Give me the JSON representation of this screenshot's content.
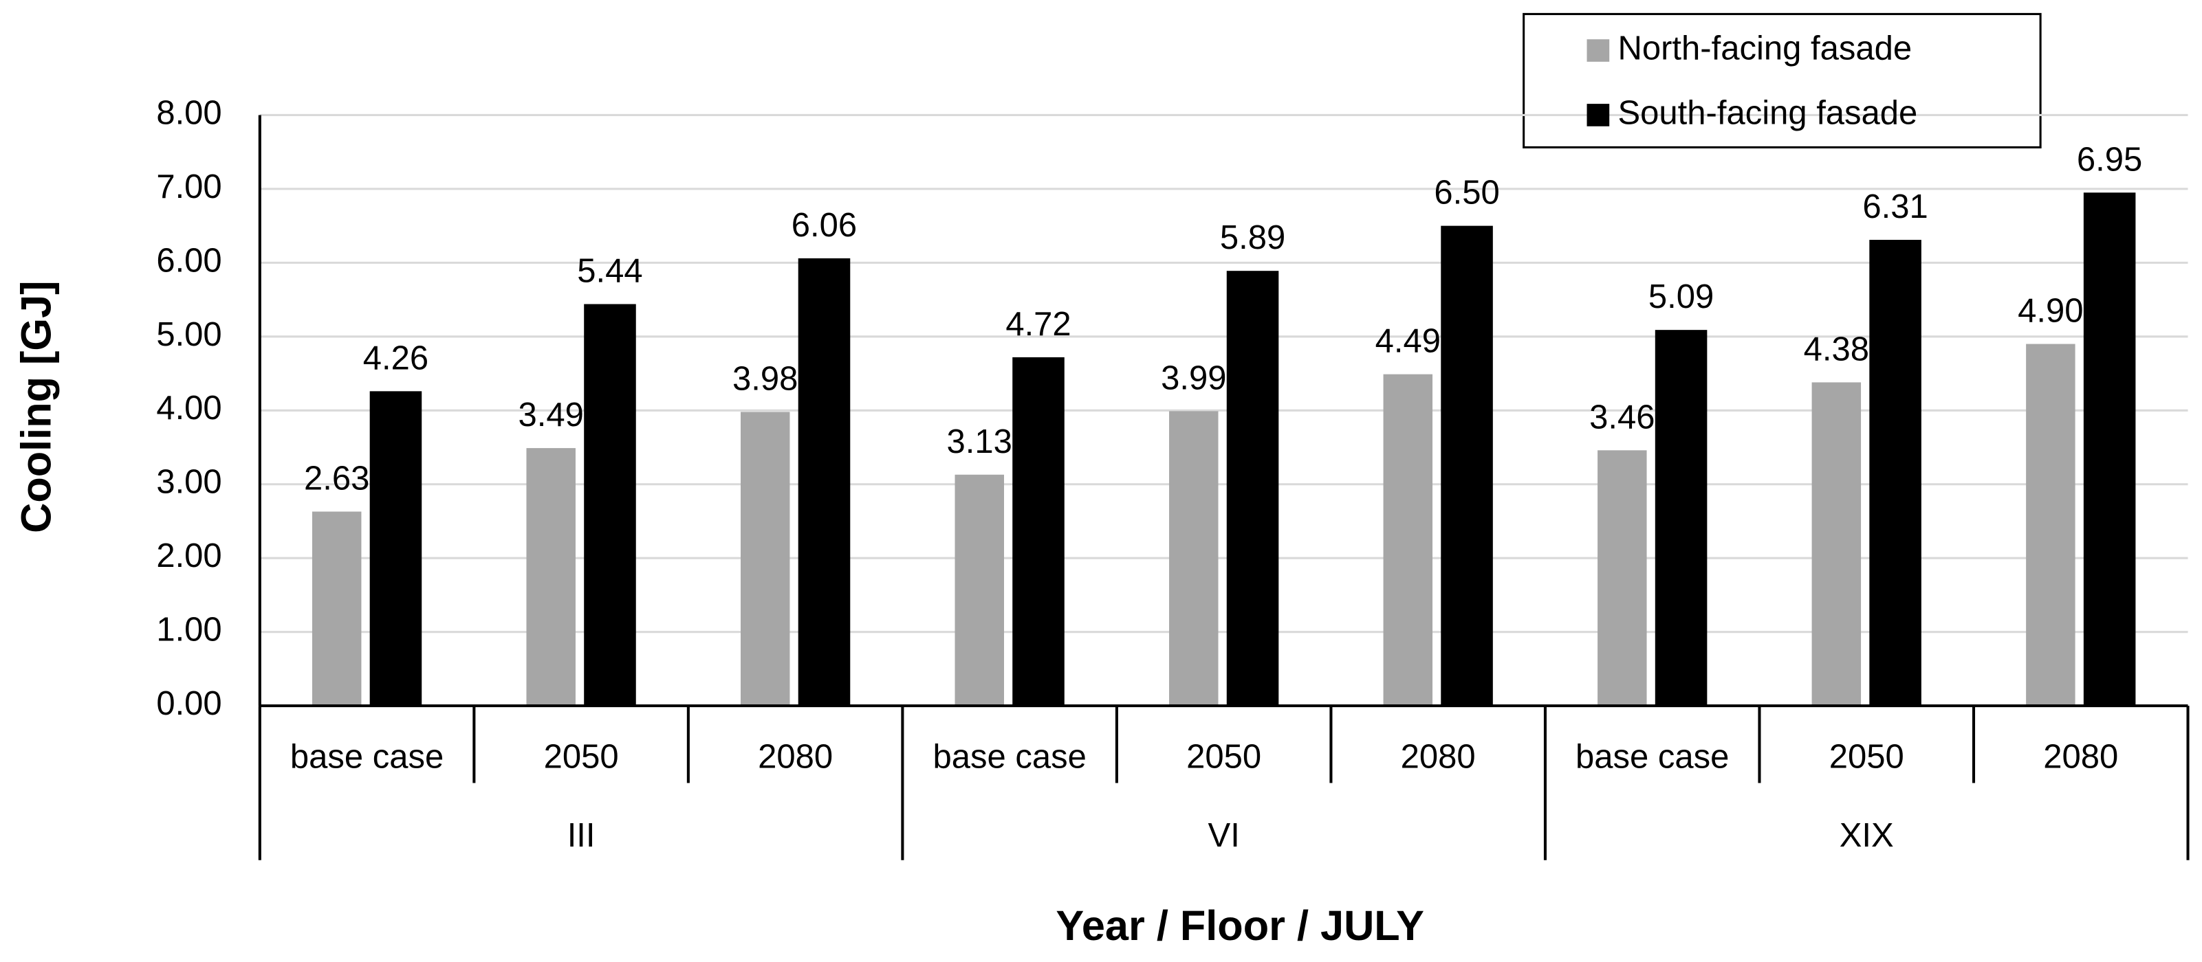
{
  "chart_data": {
    "type": "bar",
    "y_label": "Cooling  [GJ]",
    "x_label": "Year / Floor / JULY",
    "categories": [
      "base case",
      "2050",
      "2080",
      "base case",
      "2050",
      "2080",
      "base case",
      "2050",
      "2080"
    ],
    "groups": [
      "III",
      "VI",
      "XIX"
    ],
    "series": [
      {
        "name": "North-facing fasade",
        "color": "#a6a6a6",
        "values": [
          2.63,
          3.49,
          3.98,
          3.13,
          3.99,
          4.49,
          3.46,
          4.38,
          4.9
        ],
        "value_labels": [
          "2.63",
          "3.49",
          "3.98",
          "3.13",
          "3.99",
          "4.49",
          "3.46",
          "4.38",
          "4.90"
        ]
      },
      {
        "name": "South-facing fasade",
        "color": "#000000",
        "values": [
          4.26,
          5.44,
          6.06,
          4.72,
          5.89,
          6.5,
          5.09,
          6.31,
          6.95
        ],
        "value_labels": [
          "4.26",
          "5.44",
          "6.06",
          "4.72",
          "5.89",
          "6.50",
          "5.09",
          "6.31",
          "6.95"
        ]
      }
    ],
    "ylim": [
      0,
      8
    ],
    "yticks": [
      {
        "value": 0,
        "label": "0.00"
      },
      {
        "value": 1,
        "label": "1.00"
      },
      {
        "value": 2,
        "label": "2.00"
      },
      {
        "value": 3,
        "label": "3.00"
      },
      {
        "value": 4,
        "label": "4.00"
      },
      {
        "value": 5,
        "label": "5.00"
      },
      {
        "value": 6,
        "label": "6.00"
      },
      {
        "value": 7,
        "label": "7.00"
      },
      {
        "value": 8,
        "label": "8.00"
      }
    ],
    "grid": true,
    "legend": "top-right"
  }
}
